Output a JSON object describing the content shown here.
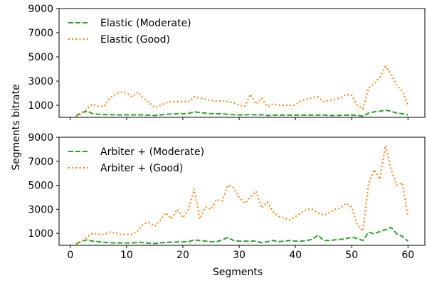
{
  "chart_data": [
    {
      "type": "line",
      "ylabel": "Segments bitrate",
      "xlim": [
        -2,
        63
      ],
      "ylim": [
        0,
        9000
      ],
      "yticks": [
        1000,
        3000,
        5000,
        7000,
        9000
      ],
      "xticks": [
        0,
        10,
        20,
        30,
        40,
        50,
        60
      ],
      "show_xtick_labels": false,
      "legend_position": "top-left",
      "series": [
        {
          "name": "Elastic (Moderate)",
          "color": "#2ca02c",
          "style": "dashed",
          "x": [
            1,
            2,
            3,
            4,
            5,
            6,
            7,
            8,
            9,
            10,
            11,
            12,
            13,
            14,
            15,
            16,
            17,
            18,
            19,
            20,
            21,
            22,
            23,
            24,
            25,
            26,
            27,
            28,
            29,
            30,
            31,
            32,
            33,
            34,
            35,
            36,
            37,
            38,
            39,
            40,
            41,
            42,
            43,
            44,
            45,
            46,
            47,
            48,
            49,
            50,
            51,
            52,
            53,
            54,
            55,
            56,
            57,
            58,
            59,
            60
          ],
          "values": [
            100,
            400,
            500,
            300,
            250,
            230,
            220,
            210,
            200,
            210,
            200,
            220,
            200,
            180,
            150,
            200,
            250,
            280,
            300,
            300,
            320,
            450,
            400,
            350,
            300,
            300,
            280,
            250,
            220,
            200,
            200,
            250,
            200,
            220,
            150,
            180,
            180,
            180,
            180,
            180,
            180,
            180,
            180,
            180,
            200,
            150,
            150,
            170,
            180,
            180,
            150,
            100,
            350,
            450,
            500,
            600,
            500,
            350,
            300,
            200
          ]
        },
        {
          "name": "Elastic (Good)",
          "color": "#ff7f0e",
          "style": "dotted",
          "x": [
            1,
            2,
            3,
            4,
            5,
            6,
            7,
            8,
            9,
            10,
            11,
            12,
            13,
            14,
            15,
            16,
            17,
            18,
            19,
            20,
            21,
            22,
            23,
            24,
            25,
            26,
            27,
            28,
            29,
            30,
            31,
            32,
            33,
            34,
            35,
            36,
            37,
            38,
            39,
            40,
            41,
            42,
            43,
            44,
            45,
            46,
            47,
            48,
            49,
            50,
            51,
            52,
            53,
            54,
            55,
            56,
            57,
            58,
            59,
            60
          ],
          "values": [
            100,
            300,
            700,
            1100,
            900,
            900,
            1600,
            1900,
            2100,
            2000,
            1700,
            2100,
            1600,
            1200,
            800,
            1000,
            1200,
            1300,
            1300,
            1300,
            1300,
            1700,
            1600,
            1500,
            1400,
            1350,
            1350,
            1300,
            1200,
            1000,
            900,
            1900,
            1100,
            1600,
            900,
            1100,
            1000,
            1000,
            1000,
            1000,
            1400,
            1500,
            1600,
            1700,
            1300,
            1400,
            1500,
            1600,
            1900,
            1800,
            1000,
            700,
            2400,
            2800,
            3300,
            4200,
            3600,
            2600,
            2200,
            1000
          ]
        }
      ]
    },
    {
      "type": "line",
      "xlabel": "Segments",
      "ylabel": "",
      "xlim": [
        -2,
        63
      ],
      "ylim": [
        0,
        9000
      ],
      "yticks": [
        1000,
        3000,
        5000,
        7000,
        9000
      ],
      "xticks": [
        0,
        10,
        20,
        30,
        40,
        50,
        60
      ],
      "legend_position": "top-left",
      "series": [
        {
          "name": "Arbiter + (Moderate)",
          "color": "#2ca02c",
          "style": "dashed",
          "x": [
            1,
            2,
            3,
            4,
            5,
            6,
            7,
            8,
            9,
            10,
            11,
            12,
            13,
            14,
            15,
            16,
            17,
            18,
            19,
            20,
            21,
            22,
            23,
            24,
            25,
            26,
            27,
            28,
            29,
            30,
            31,
            32,
            33,
            34,
            35,
            36,
            37,
            38,
            39,
            40,
            41,
            42,
            43,
            44,
            45,
            46,
            47,
            48,
            49,
            50,
            51,
            52,
            53,
            54,
            55,
            56,
            57,
            58,
            59,
            60
          ],
          "values": [
            100,
            350,
            450,
            350,
            300,
            250,
            220,
            200,
            200,
            200,
            200,
            250,
            220,
            180,
            150,
            200,
            250,
            250,
            280,
            280,
            300,
            450,
            400,
            350,
            300,
            300,
            450,
            650,
            400,
            350,
            350,
            350,
            350,
            220,
            300,
            400,
            300,
            350,
            400,
            350,
            350,
            400,
            500,
            850,
            400,
            400,
            450,
            500,
            550,
            700,
            550,
            400,
            1100,
            950,
            1150,
            1300,
            1500,
            950,
            750,
            350
          ]
        },
        {
          "name": "Arbiter + (Good)",
          "color": "#ff7f0e",
          "style": "dotted",
          "x": [
            1,
            2,
            3,
            4,
            5,
            6,
            7,
            8,
            9,
            10,
            11,
            12,
            13,
            14,
            15,
            16,
            17,
            18,
            19,
            20,
            21,
            22,
            23,
            24,
            25,
            26,
            27,
            28,
            29,
            30,
            31,
            32,
            33,
            34,
            35,
            36,
            37,
            38,
            39,
            40,
            41,
            42,
            43,
            44,
            45,
            46,
            47,
            48,
            49,
            50,
            51,
            52,
            53,
            54,
            55,
            56,
            57,
            58,
            59,
            60
          ],
          "values": [
            100,
            300,
            700,
            1000,
            900,
            900,
            1100,
            1000,
            900,
            900,
            900,
            1200,
            1800,
            1900,
            1600,
            2100,
            2700,
            2200,
            3000,
            2300,
            3000,
            4700,
            2200,
            3200,
            3000,
            3800,
            3700,
            5000,
            4800,
            4000,
            3500,
            4000,
            4500,
            3100,
            3600,
            2800,
            2400,
            2300,
            2100,
            2400,
            2700,
            3000,
            3000,
            2700,
            2500,
            2700,
            3000,
            3100,
            3500,
            3200,
            1700,
            1200,
            5100,
            6300,
            5500,
            8300,
            6300,
            5000,
            5200,
            2400
          ]
        }
      ]
    }
  ]
}
